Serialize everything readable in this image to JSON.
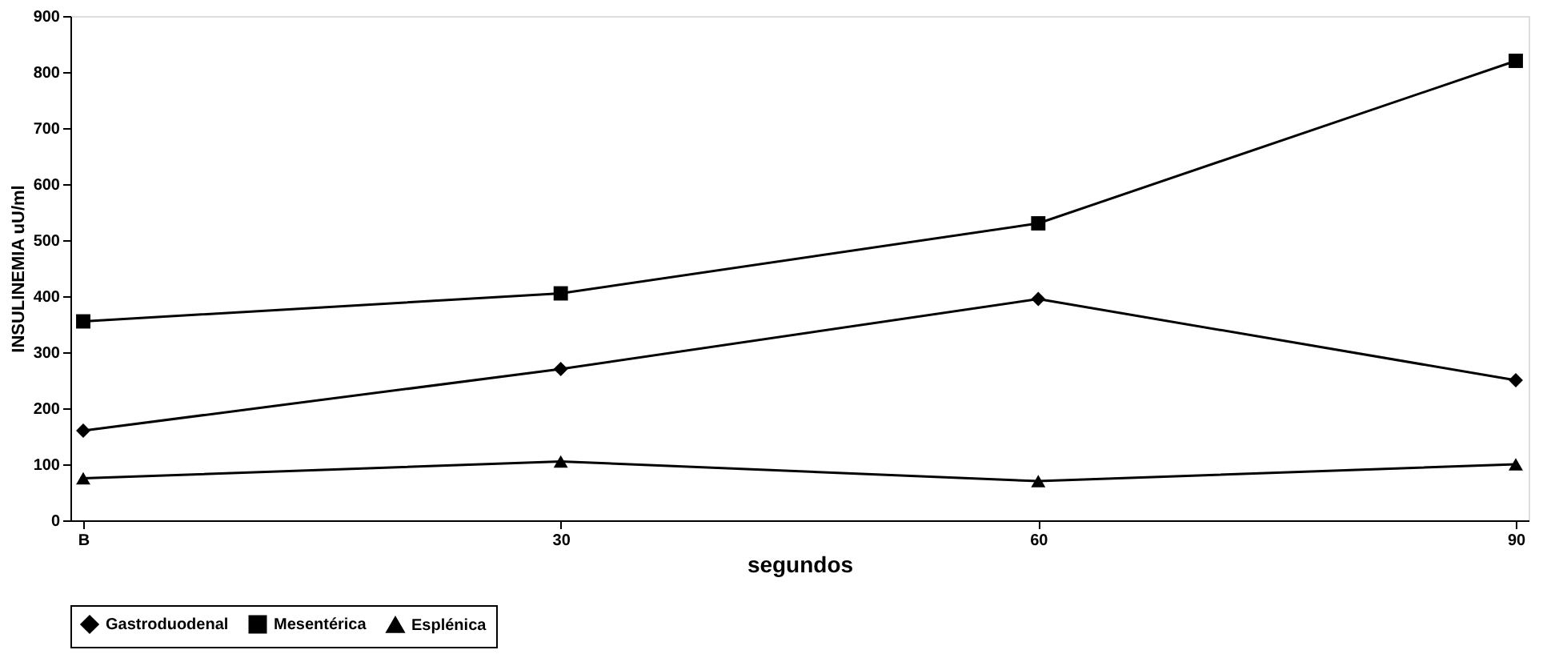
{
  "chart_data": {
    "type": "line",
    "xlabel": "segundos",
    "ylabel": "INSULINEMIA uU/ml",
    "categories": [
      "B",
      "30",
      "60",
      "90"
    ],
    "series": [
      {
        "name": "Gastroduodenal",
        "color": "#000000",
        "marker": "diamond",
        "values": [
          160,
          270,
          395,
          250
        ]
      },
      {
        "name": "Mesentérica",
        "color": "#000000",
        "marker": "square",
        "values": [
          355,
          405,
          530,
          820
        ]
      },
      {
        "name": "Esplénica",
        "color": "#000000",
        "marker": "triangle",
        "values": [
          75,
          105,
          70,
          100
        ]
      }
    ],
    "ylim": [
      0,
      900
    ],
    "yticks": [
      0,
      100,
      200,
      300,
      400,
      500,
      600,
      700,
      800,
      900
    ],
    "grid": false,
    "legend": "bottom",
    "line_style": "solid"
  }
}
